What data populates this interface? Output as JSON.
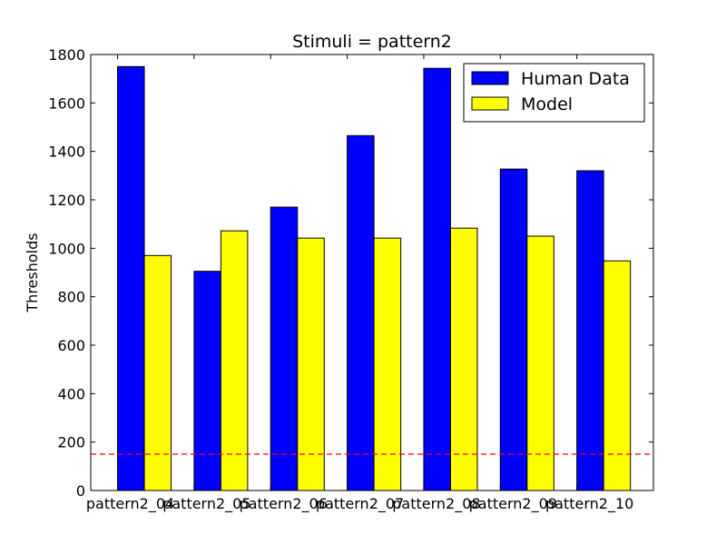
{
  "chart_data": {
    "type": "bar",
    "title": "Stimuli = pattern2",
    "xlabel": "",
    "ylabel": "Thresholds",
    "categories": [
      "pattern2_04",
      "pattern2_05",
      "pattern2_06",
      "pattern2_07",
      "pattern2_08",
      "pattern2_09",
      "pattern2_10"
    ],
    "series": [
      {
        "name": "Human Data",
        "color": "#0000ff",
        "values": [
          1750,
          905,
          1170,
          1465,
          1743,
          1327,
          1320
        ]
      },
      {
        "name": "Model",
        "color": "#ffff00",
        "values": [
          970,
          1072,
          1042,
          1042,
          1083,
          1050,
          948
        ]
      }
    ],
    "ylim": [
      0,
      1800
    ],
    "yticks": [
      0,
      200,
      400,
      600,
      800,
      1000,
      1200,
      1400,
      1600,
      1800
    ],
    "reference_line": {
      "y": 150,
      "color": "#ff0000",
      "style": "dashed"
    },
    "legend": {
      "placement": "top-right"
    },
    "grid": false
  }
}
